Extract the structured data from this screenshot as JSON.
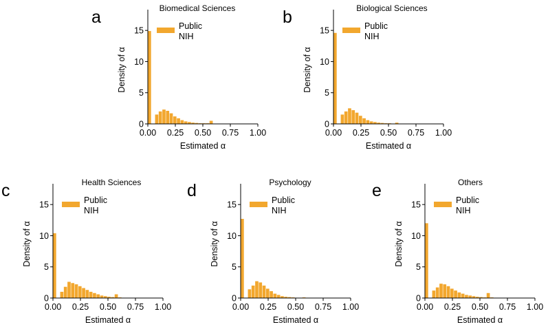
{
  "chart_data": [
    {
      "panel": "a",
      "type": "bar",
      "title": "Biomedical Sciences",
      "xlabel": "Estimated α",
      "ylabel": "Density of α",
      "xlim": [
        0,
        1
      ],
      "ylim": [
        0,
        18
      ],
      "xticks": [
        "0.00",
        "0.25",
        "0.50",
        "0.75",
        "1.00"
      ],
      "yticks": [
        "0",
        "5",
        "10",
        "15"
      ],
      "bin_width": 0.033,
      "bin_starts": [
        0,
        0.033,
        0.066,
        0.099,
        0.132,
        0.165,
        0.198,
        0.231,
        0.264,
        0.297,
        0.33,
        0.363,
        0.396,
        0.429,
        0.462,
        0.495,
        0.528,
        0.561,
        0.594,
        0.627,
        0.66
      ],
      "values": [
        14.9,
        0.0,
        1.5,
        2.0,
        2.3,
        2.1,
        1.7,
        1.2,
        0.9,
        0.6,
        0.4,
        0.3,
        0.2,
        0.15,
        0.1,
        0.1,
        0.1,
        0.5,
        0.05,
        0.0,
        0.0
      ],
      "legend": [
        "Public",
        "NIH"
      ],
      "color": "#F2A72E"
    },
    {
      "panel": "b",
      "type": "bar",
      "title": "Biological Sciences",
      "xlabel": "Estimated α",
      "ylabel": "Density of α",
      "xlim": [
        0,
        1
      ],
      "ylim": [
        0,
        18
      ],
      "xticks": [
        "0.00",
        "0.25",
        "0.50",
        "0.75",
        "1.00"
      ],
      "yticks": [
        "0",
        "5",
        "10",
        "15"
      ],
      "bin_width": 0.033,
      "bin_starts": [
        0,
        0.033,
        0.066,
        0.099,
        0.132,
        0.165,
        0.198,
        0.231,
        0.264,
        0.297,
        0.33,
        0.363,
        0.396,
        0.429,
        0.462,
        0.495,
        0.528,
        0.561,
        0.594,
        0.627,
        0.66
      ],
      "values": [
        14.6,
        0.0,
        1.5,
        2.0,
        2.5,
        2.2,
        1.8,
        1.3,
        0.9,
        0.6,
        0.4,
        0.3,
        0.2,
        0.15,
        0.1,
        0.1,
        0.05,
        0.2,
        0.05,
        0.0,
        0.0
      ],
      "legend": [
        "Public",
        "NIH"
      ],
      "color": "#F2A72E"
    },
    {
      "panel": "c",
      "type": "bar",
      "title": "Health Sciences",
      "xlabel": "Estimated α",
      "ylabel": "Density of α",
      "xlim": [
        0,
        1
      ],
      "ylim": [
        0,
        18
      ],
      "xticks": [
        "0.00",
        "0.25",
        "0.50",
        "0.75",
        "1.00"
      ],
      "yticks": [
        "0",
        "5",
        "10",
        "15"
      ],
      "bin_width": 0.033,
      "bin_starts": [
        0,
        0.033,
        0.066,
        0.099,
        0.132,
        0.165,
        0.198,
        0.231,
        0.264,
        0.297,
        0.33,
        0.363,
        0.396,
        0.429,
        0.462,
        0.495,
        0.528,
        0.561,
        0.594,
        0.627,
        0.66
      ],
      "values": [
        10.4,
        0.0,
        1.0,
        1.8,
        2.6,
        2.4,
        2.2,
        1.9,
        1.6,
        1.3,
        1.0,
        0.8,
        0.6,
        0.4,
        0.3,
        0.2,
        0.15,
        0.6,
        0.1,
        0.05,
        0.0
      ],
      "legend": [
        "Public",
        "NIH"
      ],
      "color": "#F2A72E"
    },
    {
      "panel": "d",
      "type": "bar",
      "title": "Psychology",
      "xlabel": "Estimated α",
      "ylabel": "Density of α",
      "xlim": [
        0,
        1
      ],
      "ylim": [
        0,
        18
      ],
      "xticks": [
        "0.00",
        "0.25",
        "0.50",
        "0.75",
        "1.00"
      ],
      "yticks": [
        "0",
        "5",
        "10",
        "15"
      ],
      "bin_width": 0.033,
      "bin_starts": [
        0,
        0.033,
        0.066,
        0.099,
        0.132,
        0.165,
        0.198,
        0.231,
        0.264,
        0.297,
        0.33,
        0.363,
        0.396,
        0.429,
        0.462,
        0.495,
        0.528,
        0.561,
        0.594,
        0.627,
        0.66
      ],
      "values": [
        12.7,
        0.0,
        1.4,
        2.0,
        2.7,
        2.5,
        2.0,
        1.5,
        1.1,
        0.7,
        0.5,
        0.3,
        0.2,
        0.15,
        0.1,
        0.05,
        0.05,
        0.1,
        0.05,
        0.0,
        0.0
      ],
      "legend": [
        "Public",
        "NIH"
      ],
      "color": "#F2A72E"
    },
    {
      "panel": "e",
      "type": "bar",
      "title": "Others",
      "xlabel": "Estimated α",
      "ylabel": "Density of α",
      "xlim": [
        0,
        1
      ],
      "ylim": [
        0,
        18
      ],
      "xticks": [
        "0.00",
        "0.25",
        "0.50",
        "0.75",
        "1.00"
      ],
      "yticks": [
        "0",
        "5",
        "10",
        "15"
      ],
      "bin_width": 0.033,
      "bin_starts": [
        0,
        0.033,
        0.066,
        0.099,
        0.132,
        0.165,
        0.198,
        0.231,
        0.264,
        0.297,
        0.33,
        0.363,
        0.396,
        0.429,
        0.462,
        0.495,
        0.528,
        0.561,
        0.594,
        0.627,
        0.66
      ],
      "values": [
        12.0,
        0.0,
        1.2,
        1.7,
        2.3,
        2.2,
        1.9,
        1.5,
        1.2,
        0.9,
        0.7,
        0.5,
        0.4,
        0.3,
        0.2,
        0.15,
        0.1,
        0.8,
        0.1,
        0.05,
        0.0
      ],
      "legend": [
        "Public",
        "NIH"
      ],
      "color": "#F2A72E"
    }
  ]
}
